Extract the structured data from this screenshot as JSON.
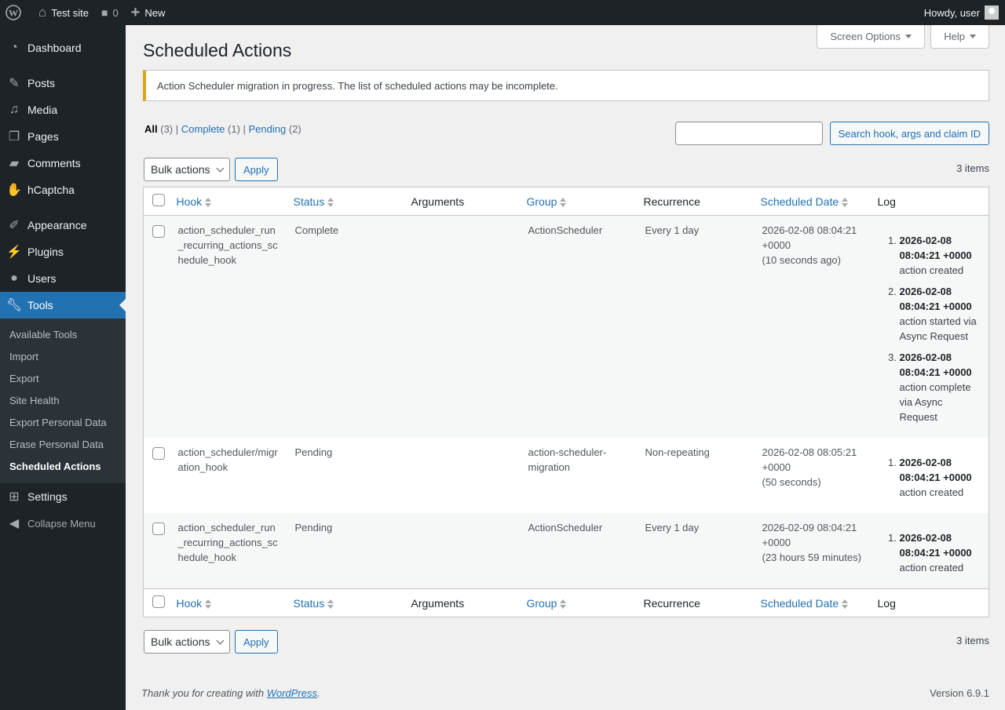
{
  "adminbar": {
    "site": "Test site",
    "comments": "0",
    "new": "New",
    "howdy": "Howdy, user"
  },
  "sidebar": {
    "items": [
      {
        "label": "Dashboard",
        "icon": "dashboard-icon"
      },
      {
        "label": "Posts",
        "icon": "pin-icon"
      },
      {
        "label": "Media",
        "icon": "media-icon"
      },
      {
        "label": "Pages",
        "icon": "pages-icon"
      },
      {
        "label": "Comments",
        "icon": "comment-icon"
      },
      {
        "label": "hCaptcha",
        "icon": "hcaptcha-icon"
      },
      {
        "label": "Appearance",
        "icon": "brush-icon"
      },
      {
        "label": "Plugins",
        "icon": "plugin-icon"
      },
      {
        "label": "Users",
        "icon": "user-icon"
      },
      {
        "label": "Tools",
        "icon": "wrench-icon"
      },
      {
        "label": "Settings",
        "icon": "settings-icon"
      }
    ],
    "submenu": [
      "Available Tools",
      "Import",
      "Export",
      "Site Health",
      "Export Personal Data",
      "Erase Personal Data",
      "Scheduled Actions"
    ],
    "collapse": "Collapse Menu"
  },
  "screen_options": "Screen Options",
  "help": "Help",
  "title": "Scheduled Actions",
  "notice": "Action Scheduler migration in progress. The list of scheduled actions may be incomplete.",
  "filters": {
    "all": "All",
    "all_count": "(3)",
    "complete": "Complete",
    "complete_count": "(1)",
    "pending": "Pending",
    "pending_count": "(2)"
  },
  "search": {
    "value": "",
    "button": "Search hook, args and claim ID"
  },
  "bulk": {
    "label": "Bulk actions",
    "apply": "Apply"
  },
  "items_count": "3 items",
  "columns": [
    "Hook",
    "Status",
    "Arguments",
    "Group",
    "Recurrence",
    "Scheduled Date",
    "Log"
  ],
  "rows": [
    {
      "hook": "action_scheduler_run_recurring_actions_schedule_hook",
      "hook_lines": [
        "action_scheduler_run",
        "_recurring_actions_sc",
        "hedule_hook"
      ],
      "status": "Complete",
      "args": "",
      "group": "ActionScheduler",
      "recurrence": "Every 1 day",
      "date": "2026-02-08 08:04:21",
      "tz": "+0000",
      "rel": "(10 seconds ago)",
      "log": [
        {
          "time": "2026-02-08 08:04:21 +0000",
          "msg": "action created"
        },
        {
          "time": "2026-02-08 08:04:21 +0000",
          "msg": "action started via Async Request"
        },
        {
          "time": "2026-02-08 08:04:21 +0000",
          "msg": "action complete via Async Request"
        }
      ]
    },
    {
      "hook": "action_scheduler/migration_hook",
      "hook_lines": [
        "action_scheduler/migr",
        "ation_hook"
      ],
      "status": "Pending",
      "args": "",
      "group": "action-scheduler-migration",
      "recurrence": "Non-repeating",
      "date": "2026-02-08 08:05:21",
      "tz": "+0000",
      "rel": "(50 seconds)",
      "log": [
        {
          "time": "2026-02-08 08:04:21 +0000",
          "msg": "action created"
        }
      ]
    },
    {
      "hook": "action_scheduler_run_recurring_actions_schedule_hook",
      "hook_lines": [
        "action_scheduler_run",
        "_recurring_actions_sc",
        "hedule_hook"
      ],
      "status": "Pending",
      "args": "",
      "group": "ActionScheduler",
      "recurrence": "Every 1 day",
      "date": "2026-02-09 08:04:21",
      "tz": "+0000",
      "rel": "(23 hours 59 minutes)",
      "log": [
        {
          "time": "2026-02-08 08:04:21 +0000",
          "msg": "action created"
        }
      ]
    }
  ],
  "footer": {
    "text": "Thank you for creating with ",
    "link": "WordPress",
    "end": ".",
    "version": "Version 6.9.1"
  },
  "colors": {
    "accent": "#2271b1",
    "adminbar": "#1d2327",
    "notice_warning": "#dba617"
  }
}
